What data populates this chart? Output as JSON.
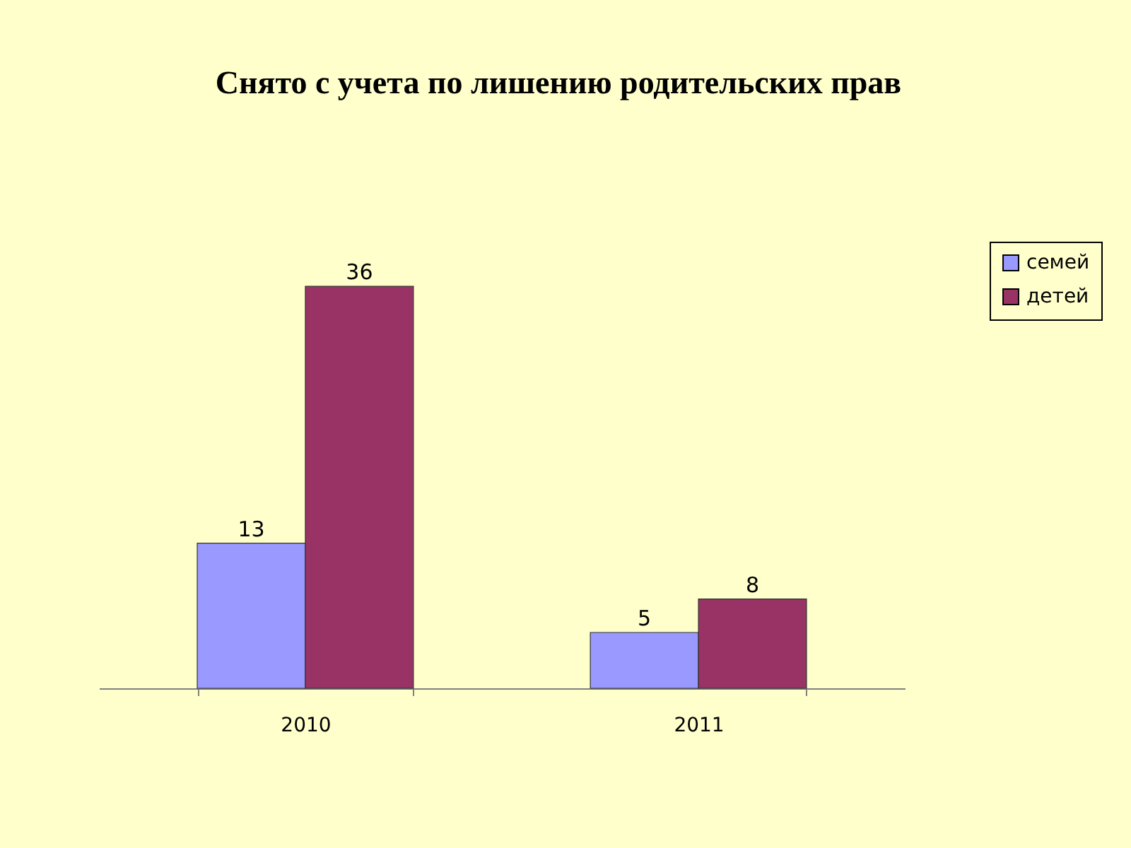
{
  "chart_data": {
    "type": "bar",
    "title": "Снято с учета по лишению родительских прав",
    "categories": [
      "2010",
      "2011"
    ],
    "series": [
      {
        "name": "семей",
        "color": "#9999ff",
        "values": [
          13,
          5
        ]
      },
      {
        "name": "детей",
        "color": "#993366",
        "values": [
          36,
          8
        ]
      }
    ],
    "data_labels": true,
    "legend": "right",
    "tick_labels": "x"
  }
}
